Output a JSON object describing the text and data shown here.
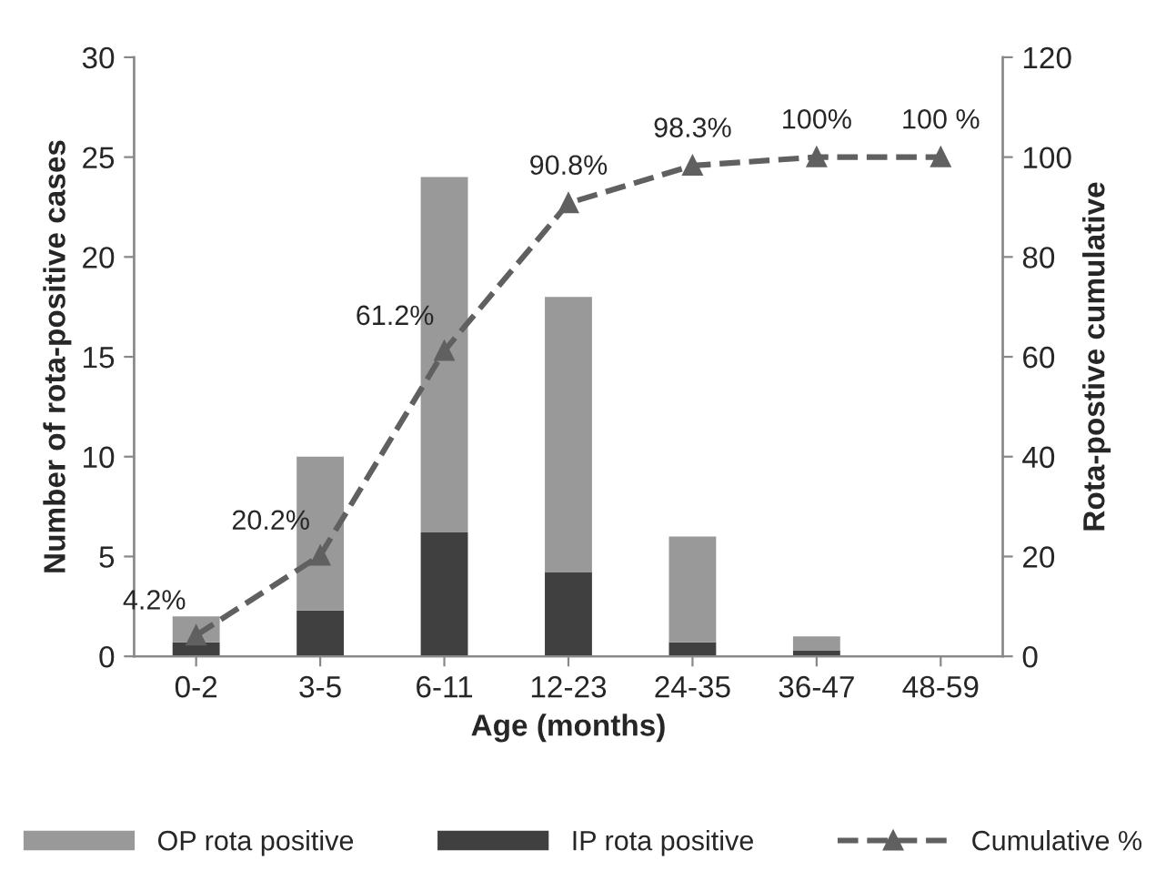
{
  "chart_data": {
    "type": "bar",
    "stacked": true,
    "xlabel": "Age (months)",
    "ylabel": "Number of rota-positive cases",
    "y2label": "Rota-postive cumulative",
    "categories": [
      "0-2",
      "3-5",
      "6-11",
      "12-23",
      "24-35",
      "36-47",
      "48-59"
    ],
    "series": [
      {
        "name": "IP rota positive",
        "color": "#404040",
        "values": [
          0.7,
          2.3,
          6.2,
          4.2,
          0.7,
          0.3,
          0
        ]
      },
      {
        "name": "OP rota positive",
        "color": "#999999",
        "values": [
          1.3,
          7.7,
          17.8,
          13.8,
          5.3,
          0.7,
          0
        ]
      },
      {
        "name": "Cumulative %",
        "type": "line",
        "axis": "y2",
        "color": "#606060",
        "marker": "triangle",
        "line_style": "dashed",
        "values": [
          4.2,
          20.2,
          61.2,
          90.8,
          98.3,
          100,
          100
        ],
        "value_labels": [
          "4.2%",
          "20.2%",
          "61.2%",
          "90.8%",
          "98.3%",
          "100%",
          "100 %"
        ]
      }
    ],
    "ylim": [
      0,
      30
    ],
    "yticks": [
      0,
      5,
      10,
      15,
      20,
      25,
      30
    ],
    "y2lim": [
      0,
      120
    ],
    "y2ticks": [
      0,
      20,
      40,
      60,
      80,
      100,
      120
    ],
    "grid": false,
    "legend": "bottom"
  }
}
